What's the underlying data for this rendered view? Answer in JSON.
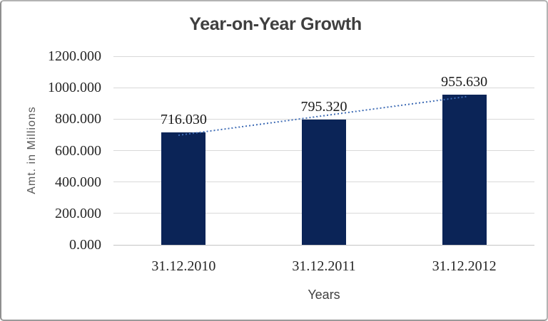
{
  "chart_data": {
    "type": "bar",
    "title": "Year-on-Year Growth",
    "categories": [
      "31.12.2010",
      "31.12.2011",
      "31.12.2012"
    ],
    "values": [
      716.03,
      795.32,
      955.63
    ],
    "value_labels": [
      "716.030",
      "795.320",
      "955.630"
    ],
    "xlabel": "Years",
    "ylabel": "Amt. in Millions",
    "ylim": [
      0,
      1200
    ],
    "ytick_labels": [
      "1200.000",
      "1000.000",
      "800.000",
      "600.000",
      "400.000",
      "200.000",
      "0.000"
    ],
    "grid": true,
    "legend": "none",
    "trendline": {
      "type": "linear",
      "style": "dotted"
    },
    "colors": {
      "bar": "#0b2457",
      "trend": "#3f6cb5",
      "gridline": "#d9d9d9",
      "axis_line": "#c4c4c4",
      "title_text": "#3f3f3f",
      "tick_text": "#262626",
      "axis_title_text": "#595959"
    }
  }
}
